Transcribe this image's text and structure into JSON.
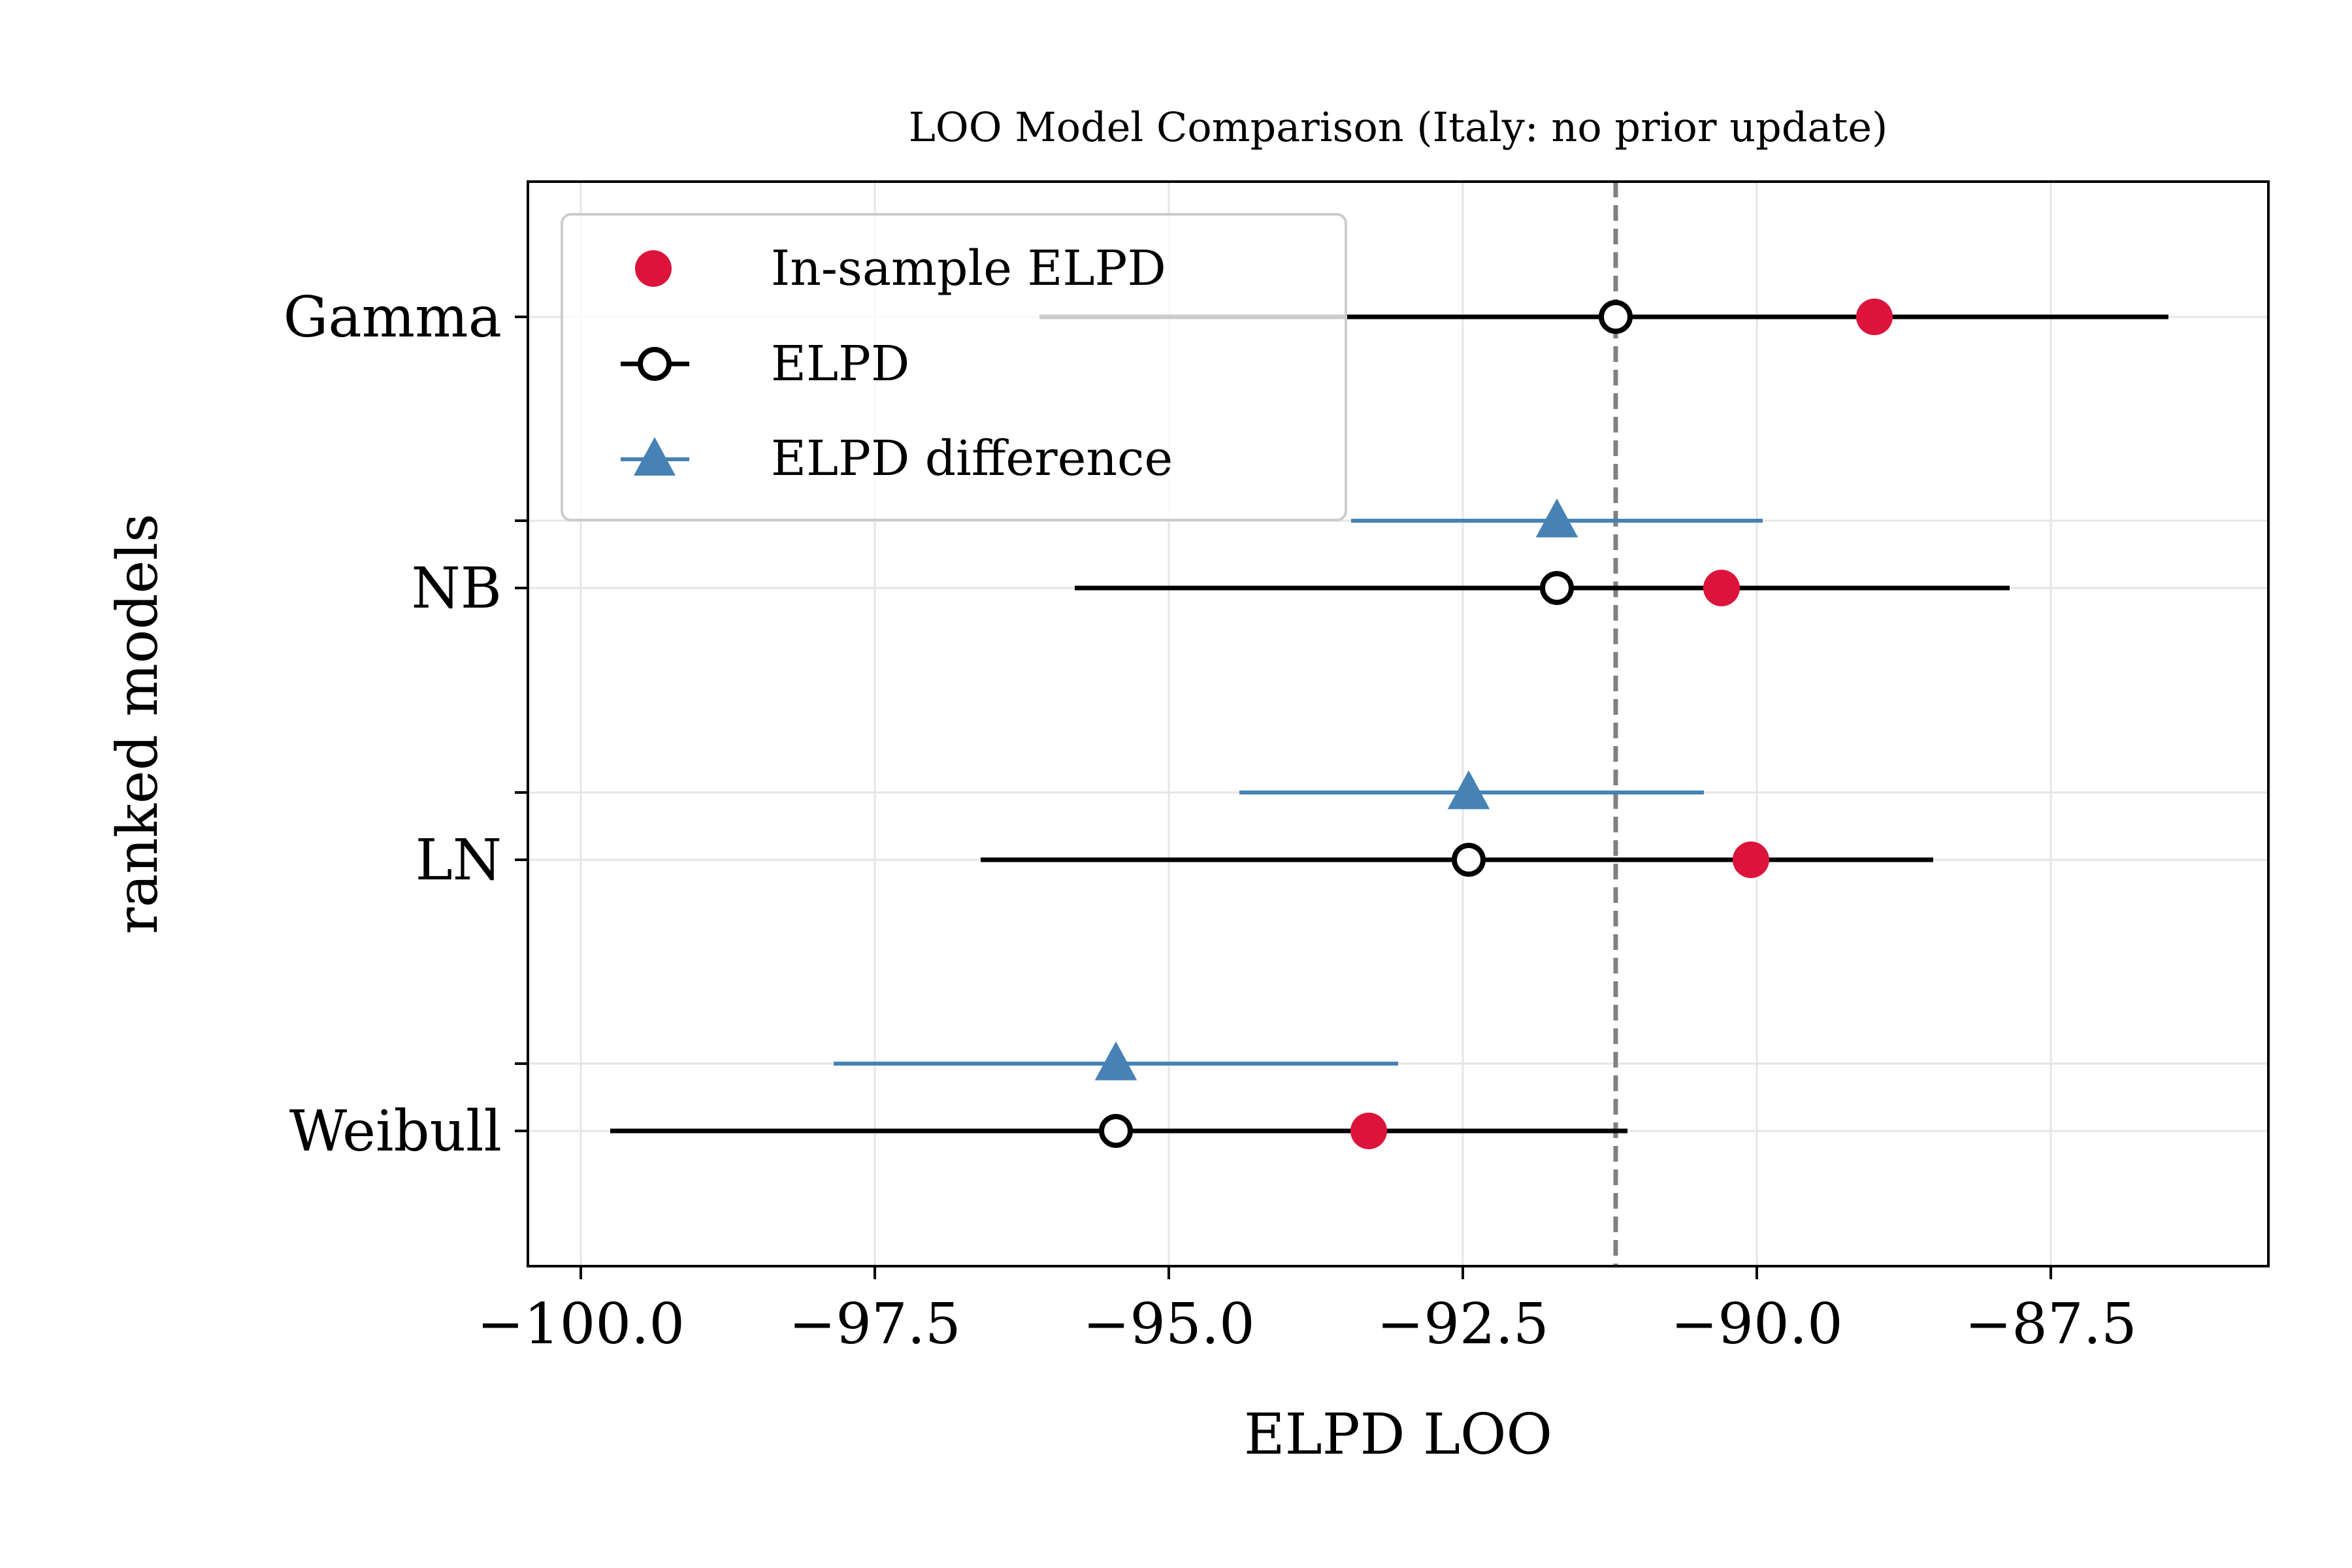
{
  "chart_data": {
    "type": "scatter",
    "title": "LOO Model Comparison (Italy: no prior update)",
    "xlabel": "ELPD LOO",
    "ylabel": "ranked models",
    "xlim": [
      -100.45,
      -85.65
    ],
    "xticks": [
      -100.0,
      -97.5,
      -95.0,
      -92.5,
      -90.0,
      -87.5
    ],
    "xtick_labels": [
      "−100.0",
      "−97.5",
      "−95.0",
      "−92.5",
      "−90.0",
      "−87.5"
    ],
    "categories": [
      "Gamma",
      "NB",
      "LN",
      "Weibull"
    ],
    "grid": true,
    "reference_line": {
      "x": -91.2,
      "style": "dashed",
      "color": "#808080"
    },
    "legend": {
      "position": "top-left",
      "entries": [
        {
          "label": "In-sample ELPD",
          "marker": "filled-circle",
          "color": "#dc143c"
        },
        {
          "label": "ELPD",
          "marker": "open-circle",
          "color": "#000000"
        },
        {
          "label": "ELPD difference",
          "marker": "triangle",
          "color": "#4682b4"
        }
      ]
    },
    "series": [
      {
        "name": "In-sample ELPD",
        "color": "#dc143c",
        "points": [
          {
            "model": "Gamma",
            "x": -89.0
          },
          {
            "model": "NB",
            "x": -90.3
          },
          {
            "model": "LN",
            "x": -90.05
          },
          {
            "model": "Weibull",
            "x": -93.3
          }
        ]
      },
      {
        "name": "ELPD",
        "color": "#000000",
        "points": [
          {
            "model": "Gamma",
            "x": -91.2,
            "low": -96.1,
            "high": -86.5
          },
          {
            "model": "NB",
            "x": -91.7,
            "low": -95.8,
            "high": -87.85
          },
          {
            "model": "LN",
            "x": -92.45,
            "low": -96.6,
            "high": -88.5
          },
          {
            "model": "Weibull",
            "x": -95.45,
            "low": -99.75,
            "high": -91.1
          }
        ]
      },
      {
        "name": "ELPD difference",
        "color": "#4682b4",
        "points": [
          {
            "model": "NB",
            "x": -91.7,
            "low": -93.45,
            "high": -89.95
          },
          {
            "model": "LN",
            "x": -92.45,
            "low": -94.4,
            "high": -90.45
          },
          {
            "model": "Weibull",
            "x": -95.45,
            "low": -97.85,
            "high": -93.05
          }
        ]
      }
    ]
  }
}
